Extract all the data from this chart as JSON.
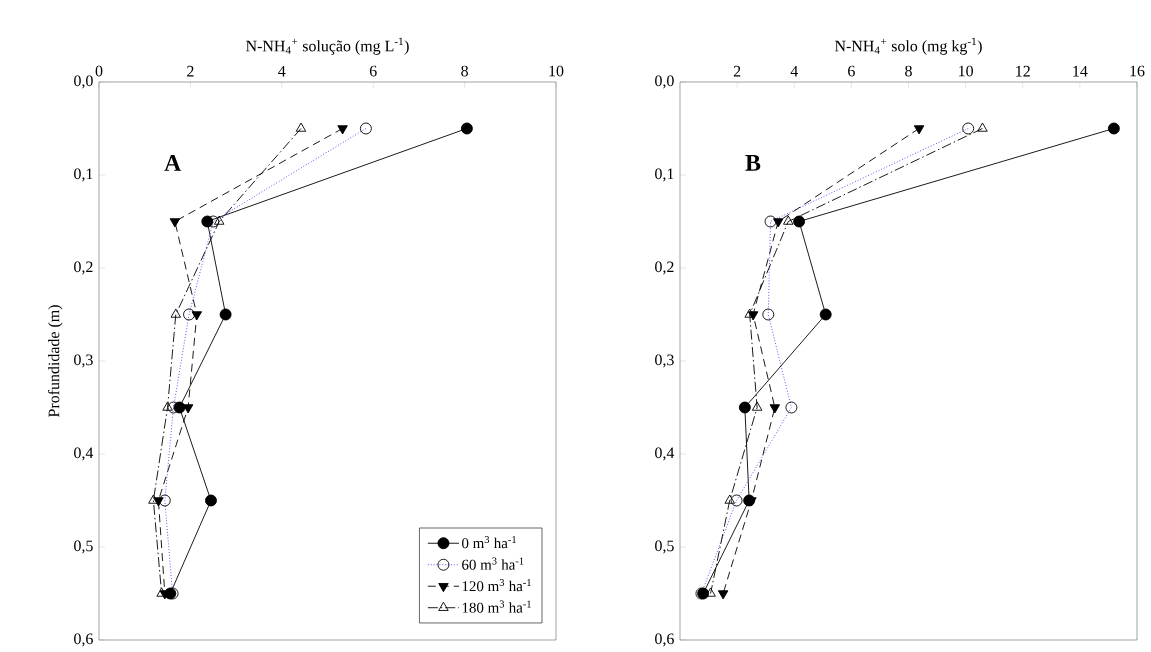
{
  "chart_data": [
    {
      "type": "line",
      "xlabel": "N-NH$_{4}$$^{+}$ solução (mg L$^{-1}$)",
      "ylabel": "Profundidade (m)",
      "annotations": [
        "**A**"
      ],
      "xlim": [
        0,
        10
      ],
      "xticks": [
        0,
        2,
        4,
        6,
        8,
        10
      ],
      "ylim": [
        0.6,
        0.0
      ],
      "yticks": [
        {
          "value": 0.0,
          "label": "0,0"
        },
        {
          "value": 0.1,
          "label": "0,1"
        },
        {
          "value": 0.2,
          "label": "0,2"
        },
        {
          "value": 0.3,
          "label": "0,3"
        },
        {
          "value": 0.4,
          "label": "0,4"
        },
        {
          "value": 0.5,
          "label": "0,5"
        },
        {
          "value": 0.6,
          "label": "0,6"
        }
      ],
      "legend": "bottom right",
      "grid": false,
      "series": [
        {
          "name": "0 m$^{3}$ ha$^{-1}$",
          "color": "#000000",
          "marker": "circle",
          "line_style": "solid",
          "x": [
            8.05,
            2.37,
            2.77,
            1.76,
            2.45,
            1.56
          ],
          "values": [
            0.05,
            0.15,
            0.25,
            0.35,
            0.45,
            0.55
          ]
        },
        {
          "name": "60 m$^{3}$ ha$^{-1}$",
          "color": "#3333ff",
          "marker": "circle-open",
          "line_style": "dotted",
          "x": [
            5.84,
            2.5,
            1.97,
            1.63,
            1.44,
            1.61
          ],
          "values": [
            0.05,
            0.15,
            0.25,
            0.35,
            0.45,
            0.55
          ]
        },
        {
          "name": "120 m$^{3}$ ha$^{-1}$",
          "color": "#000000",
          "marker": "triangle-down",
          "line_style": "dashed",
          "x": [
            5.33,
            1.66,
            2.14,
            1.95,
            1.3,
            1.44
          ],
          "values": [
            0.05,
            0.15,
            0.25,
            0.35,
            0.45,
            0.55
          ]
        },
        {
          "name": "180 m$^{3}$ ha$^{-1}$",
          "color": "#000000",
          "marker": "triangle",
          "line_style": "dashdot",
          "x": [
            4.42,
            2.63,
            1.68,
            1.5,
            1.19,
            1.37
          ],
          "values": [
            0.05,
            0.15,
            0.25,
            0.35,
            0.45,
            0.55
          ]
        }
      ]
    },
    {
      "type": "line",
      "xlabel": "N-NH$_{4}$$^{+}$ solo (mg kg$^{-1}$)",
      "annotations": [
        "**B**"
      ],
      "xlim": [
        0,
        16
      ],
      "xticks": [
        2,
        4,
        6,
        8,
        10,
        12,
        14,
        16
      ],
      "ylim": [
        0.6,
        0.0
      ],
      "yticks": [
        {
          "value": 0.0,
          "label": "0,0"
        },
        {
          "value": 0.1,
          "label": "0,1"
        },
        {
          "value": 0.2,
          "label": "0,2"
        },
        {
          "value": 0.3,
          "label": "0,3"
        },
        {
          "value": 0.4,
          "label": "0,4"
        },
        {
          "value": 0.5,
          "label": "0,5"
        },
        {
          "value": 0.6,
          "label": "0,6"
        }
      ],
      "legend": false,
      "grid": false,
      "series": [
        {
          "color": "#000000",
          "marker": "circle",
          "line_style": "solid",
          "x": [
            15.19,
            4.17,
            5.1,
            2.27,
            2.42,
            0.81
          ],
          "values": [
            0.05,
            0.15,
            0.25,
            0.35,
            0.45,
            0.55
          ]
        },
        {
          "color": "#3333ff",
          "marker": "circle-open",
          "line_style": "dotted",
          "x": [
            10.09,
            3.17,
            3.09,
            3.9,
            1.98,
            0.75
          ],
          "values": [
            0.05,
            0.15,
            0.25,
            0.35,
            0.45,
            0.55
          ]
        },
        {
          "color": "#000000",
          "marker": "triangle-down",
          "line_style": "dashed",
          "x": [
            8.37,
            3.44,
            2.56,
            3.32,
            2.5,
            1.51
          ],
          "values": [
            0.05,
            0.15,
            0.25,
            0.35,
            0.45,
            0.55
          ]
        },
        {
          "color": "#000000",
          "marker": "triangle",
          "line_style": "dashdot",
          "x": [
            10.59,
            3.79,
            2.44,
            2.7,
            1.74,
            1.07
          ],
          "values": [
            0.05,
            0.15,
            0.25,
            0.35,
            0.45,
            0.55
          ]
        }
      ]
    }
  ]
}
